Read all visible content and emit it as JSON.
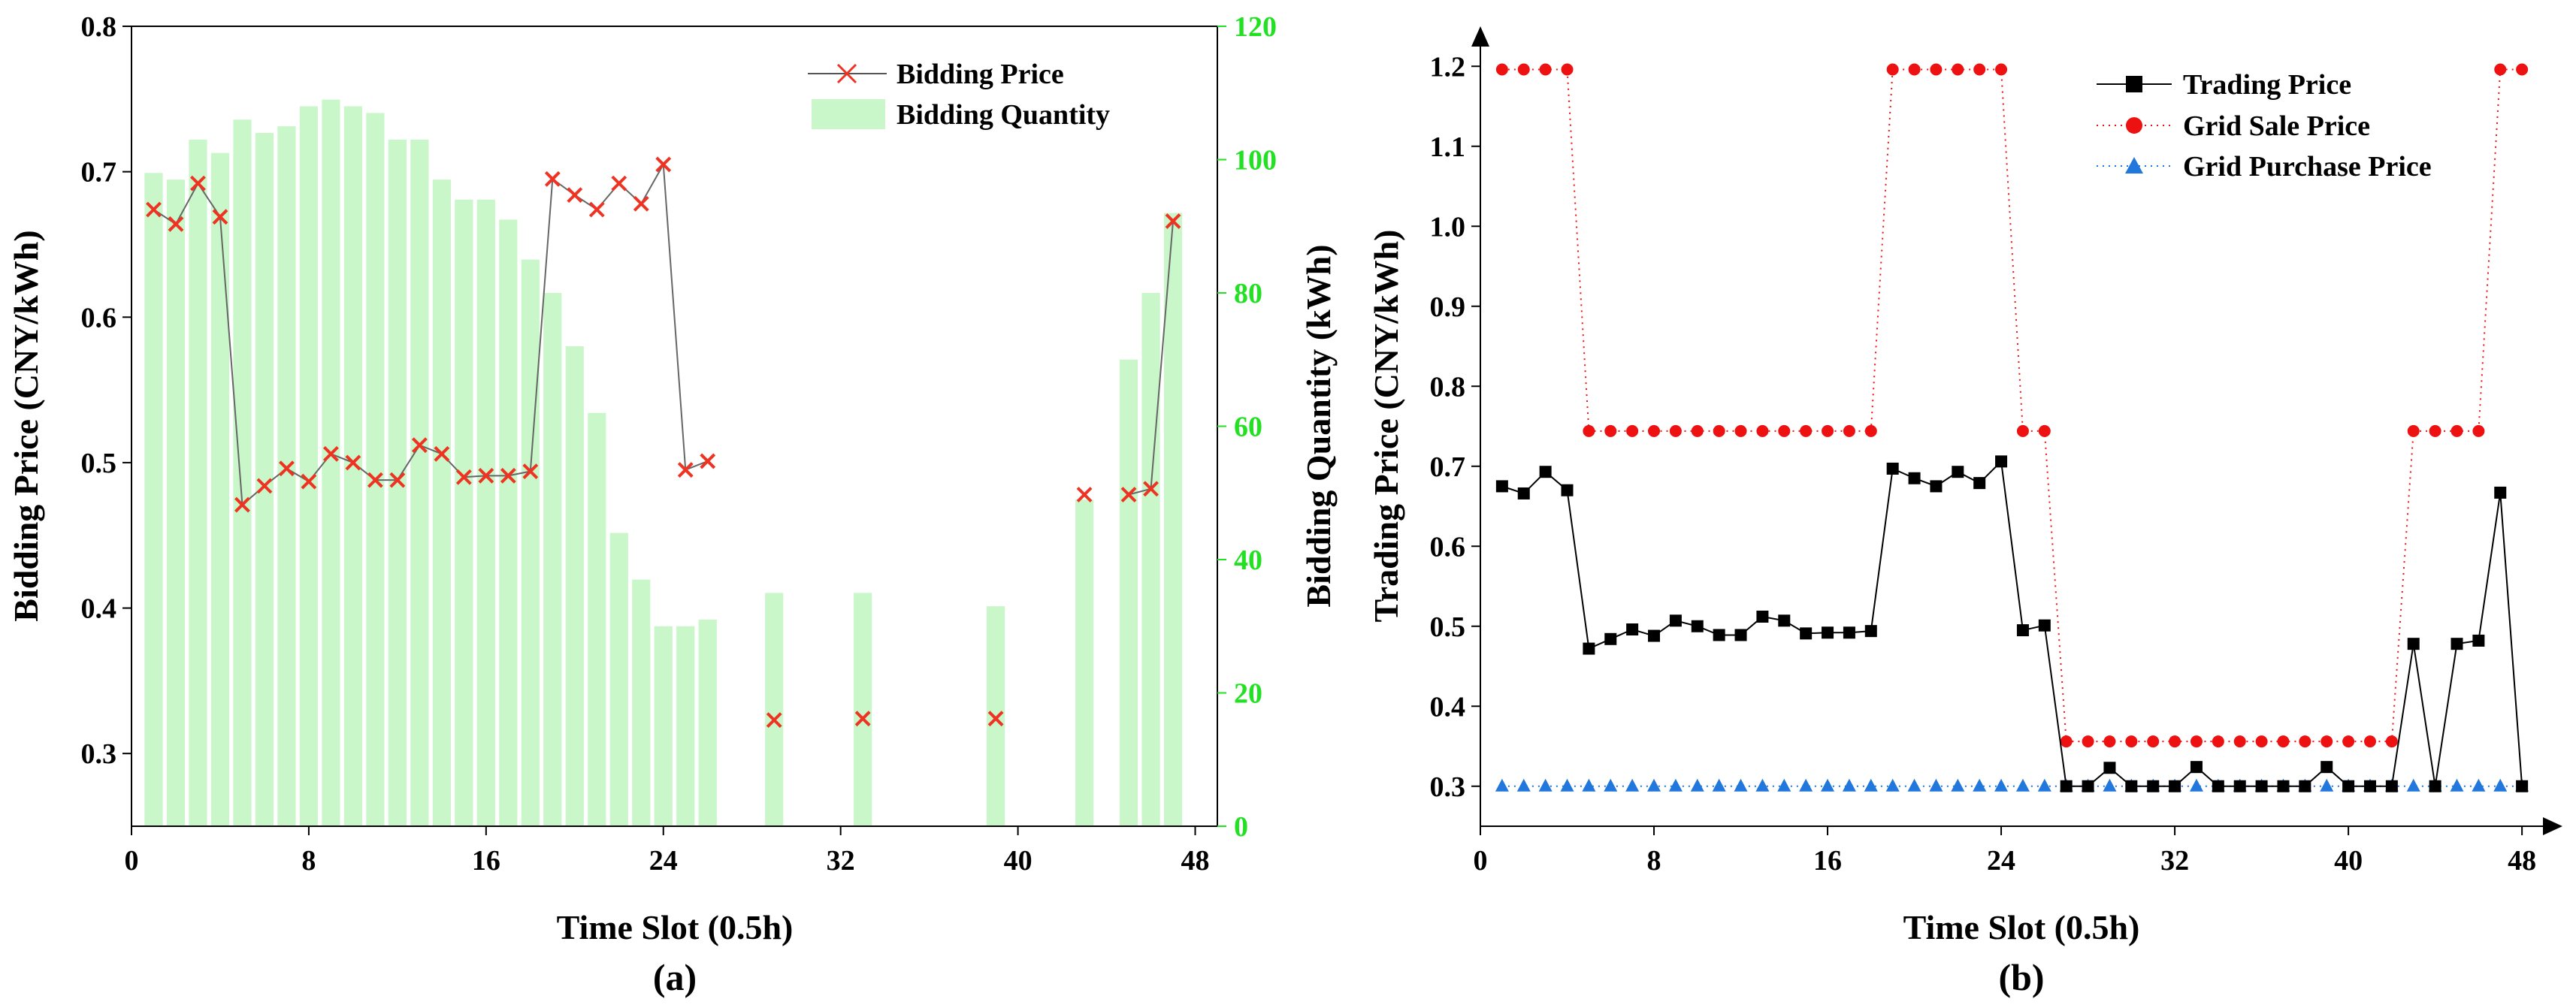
{
  "chart_data": [
    {
      "id": "a",
      "type": "bar+line",
      "caption": "(a)",
      "xlabel": "Time Slot (0.5h)",
      "ylabel_left": "Bidding Price (CNY/kWh)",
      "ylabel_right": "Bidding Quantity (kWh)",
      "xlim": [
        0,
        49
      ],
      "ylim_left": [
        0.25,
        0.8
      ],
      "ylim_right": [
        0,
        120
      ],
      "xticks": [
        "0",
        "8",
        "16",
        "24",
        "32",
        "40",
        "48"
      ],
      "yticks_left": [
        "0.3",
        "0.4",
        "0.5",
        "0.6",
        "0.7",
        "0.8"
      ],
      "yticks_right": [
        "0",
        "20",
        "40",
        "60",
        "80",
        "100",
        "120"
      ],
      "legend": {
        "position": "top-right",
        "price": "Bidding Price",
        "quantity": "Bidding Quantity"
      },
      "quantity_color": "#c9f7c9",
      "price_marker_color": "#ee3322",
      "right_axis_color": "#22e022",
      "bidding_quantity": {
        "slots": [
          1,
          2,
          3,
          4,
          5,
          6,
          7,
          8,
          9,
          10,
          11,
          12,
          13,
          14,
          15,
          16,
          17,
          18,
          19,
          20,
          21,
          22,
          23,
          24,
          25,
          26,
          29,
          33,
          39,
          43,
          45,
          46,
          47
        ],
        "values": [
          98,
          97,
          103,
          101,
          106,
          104,
          105,
          108,
          109,
          108,
          107,
          103,
          103,
          97,
          94,
          94,
          91,
          85,
          80,
          72,
          62,
          44,
          37,
          30,
          30,
          31,
          35,
          35,
          33,
          49,
          70,
          80,
          92
        ]
      },
      "bidding_price": {
        "slots": [
          1,
          2,
          3,
          4,
          5,
          6,
          7,
          8,
          9,
          10,
          11,
          12,
          13,
          14,
          15,
          16,
          17,
          18,
          19,
          20,
          21,
          22,
          23,
          24,
          25,
          26,
          29,
          33,
          39,
          43,
          45,
          46,
          47
        ],
        "values": [
          0.674,
          0.664,
          0.692,
          0.669,
          0.471,
          0.484,
          0.496,
          0.487,
          0.506,
          0.5,
          0.488,
          0.488,
          0.512,
          0.506,
          0.49,
          0.491,
          0.491,
          0.494,
          0.695,
          0.684,
          0.674,
          0.692,
          0.678,
          0.705,
          0.495,
          0.501,
          0.323,
          0.324,
          0.324,
          0.478,
          0.478,
          0.482,
          0.666
        ],
        "line_segments": [
          [
            0,
            25
          ],
          [
            30,
            32
          ]
        ]
      }
    },
    {
      "id": "b",
      "type": "line",
      "caption": "(b)",
      "xlabel": "Time Slot (0.5h)",
      "ylabel": "Trading Price (CNY/kWh)",
      "xlim": [
        0,
        49
      ],
      "ylim": [
        0.25,
        1.25
      ],
      "xticks": [
        "0",
        "8",
        "16",
        "24",
        "32",
        "40",
        "48"
      ],
      "yticks": [
        "0.3",
        "0.4",
        "0.5",
        "0.6",
        "0.7",
        "0.8",
        "0.9",
        "1.0",
        "1.1",
        "1.2"
      ],
      "legend": {
        "position": "top-right"
      },
      "series": [
        {
          "name": "Trading Price",
          "color": "#000000",
          "marker": "square",
          "x": [
            1,
            2,
            3,
            4,
            5,
            6,
            7,
            8,
            9,
            10,
            11,
            12,
            13,
            14,
            15,
            16,
            17,
            18,
            19,
            20,
            21,
            22,
            23,
            24,
            25,
            26,
            27,
            28,
            29,
            30,
            31,
            32,
            33,
            34,
            35,
            36,
            37,
            38,
            39,
            40,
            41,
            42,
            43,
            44,
            45,
            46,
            47,
            48
          ],
          "values": [
            0.675,
            0.666,
            0.693,
            0.67,
            0.472,
            0.484,
            0.496,
            0.488,
            0.507,
            0.5,
            0.489,
            0.489,
            0.512,
            0.507,
            0.491,
            0.492,
            0.492,
            0.494,
            0.697,
            0.685,
            0.675,
            0.693,
            0.679,
            0.706,
            0.495,
            0.501,
            0.3,
            0.3,
            0.323,
            0.3,
            0.3,
            0.3,
            0.324,
            0.3,
            0.3,
            0.3,
            0.3,
            0.3,
            0.324,
            0.3,
            0.3,
            0.3,
            0.478,
            0.3,
            0.478,
            0.482,
            0.667,
            0.3
          ]
        },
        {
          "name": "Grid Sale Price",
          "color": "#ee1111",
          "marker": "circle",
          "x": [
            1,
            2,
            3,
            4,
            5,
            6,
            7,
            8,
            9,
            10,
            11,
            12,
            13,
            14,
            15,
            16,
            17,
            18,
            19,
            20,
            21,
            22,
            23,
            24,
            25,
            26,
            27,
            28,
            29,
            30,
            31,
            32,
            33,
            34,
            35,
            36,
            37,
            38,
            39,
            40,
            41,
            42,
            43,
            44,
            45,
            46,
            47,
            48
          ],
          "values": [
            1.196,
            1.196,
            1.196,
            1.196,
            0.744,
            0.744,
            0.744,
            0.744,
            0.744,
            0.744,
            0.744,
            0.744,
            0.744,
            0.744,
            0.744,
            0.744,
            0.744,
            0.744,
            1.196,
            1.196,
            1.196,
            1.196,
            1.196,
            1.196,
            0.744,
            0.744,
            0.356,
            0.356,
            0.356,
            0.356,
            0.356,
            0.356,
            0.356,
            0.356,
            0.356,
            0.356,
            0.356,
            0.356,
            0.356,
            0.356,
            0.356,
            0.356,
            0.744,
            0.744,
            0.744,
            0.744,
            1.196,
            1.196
          ]
        },
        {
          "name": "Grid Purchase Price",
          "color": "#2277dd",
          "marker": "triangle",
          "x": [
            1,
            2,
            3,
            4,
            5,
            6,
            7,
            8,
            9,
            10,
            11,
            12,
            13,
            14,
            15,
            16,
            17,
            18,
            19,
            20,
            21,
            22,
            23,
            24,
            25,
            26,
            27,
            28,
            29,
            30,
            31,
            32,
            33,
            34,
            35,
            36,
            37,
            38,
            39,
            40,
            41,
            42,
            43,
            44,
            45,
            46,
            47,
            48
          ],
          "values": [
            0.3,
            0.3,
            0.3,
            0.3,
            0.3,
            0.3,
            0.3,
            0.3,
            0.3,
            0.3,
            0.3,
            0.3,
            0.3,
            0.3,
            0.3,
            0.3,
            0.3,
            0.3,
            0.3,
            0.3,
            0.3,
            0.3,
            0.3,
            0.3,
            0.3,
            0.3,
            0.3,
            0.3,
            0.3,
            0.3,
            0.3,
            0.3,
            0.3,
            0.3,
            0.3,
            0.3,
            0.3,
            0.3,
            0.3,
            0.3,
            0.3,
            0.3,
            0.3,
            0.3,
            0.3,
            0.3,
            0.3,
            0.3
          ]
        }
      ]
    }
  ]
}
